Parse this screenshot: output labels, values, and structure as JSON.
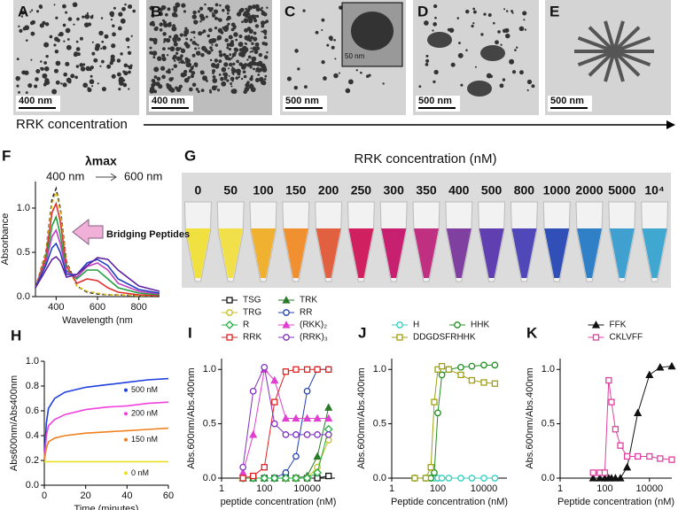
{
  "images": [
    {
      "label": "A",
      "scale": "400 nm"
    },
    {
      "label": "B",
      "scale": "400 nm"
    },
    {
      "label": "C",
      "scale": "500 nm",
      "inset_scale": "50 nm"
    },
    {
      "label": "D",
      "scale": "500 nm"
    },
    {
      "label": "E",
      "scale": "500 nm"
    }
  ],
  "arrow_label": "RRK concentration",
  "photo": {
    "label": "G",
    "title": "RRK concentration (nM)",
    "tubes": [
      "0",
      "50",
      "100",
      "150",
      "200",
      "250",
      "300",
      "350",
      "400",
      "500",
      "800",
      "1000",
      "2000",
      "5000",
      "10⁴"
    ],
    "colors": [
      "#f0e040",
      "#f2e04a",
      "#f0b030",
      "#f09030",
      "#e06040",
      "#d02060",
      "#c82070",
      "#c03080",
      "#8040a0",
      "#6040b0",
      "#5048b8",
      "#3050b8",
      "#3080c8",
      "#40a0d0",
      "#40a8d0"
    ]
  },
  "chart_data": [
    {
      "type": "line",
      "label": "F",
      "xlabel": "Wavelength (nm",
      "ylabel": "Absorbance",
      "annotations": [
        "λmax",
        "400 nm",
        "600 nm",
        "Bridging Peptides"
      ],
      "x": [
        300,
        350,
        380,
        400,
        420,
        450,
        500,
        550,
        600,
        650,
        700,
        800,
        900
      ],
      "xlim": [
        300,
        900
      ],
      "xticks": [
        400,
        600,
        800
      ],
      "ylim": [
        0,
        1.3
      ],
      "yticks": [
        {
          "value": 0,
          "label": "0.0"
        },
        0.5,
        {
          "value": 1,
          "label": "1.0"
        }
      ],
      "series": [
        {
          "color": "#222222",
          "dashed": true,
          "values": [
            0.1,
            0.5,
            1.1,
            1.22,
            1.0,
            0.4,
            0.12,
            0.05,
            0.03,
            0.02,
            0.02,
            0.01,
            0.01
          ]
        },
        {
          "color": "#e0c020",
          "dashed": true,
          "values": [
            0.1,
            0.48,
            1.05,
            1.18,
            0.96,
            0.38,
            0.12,
            0.06,
            0.04,
            0.02,
            0.02,
            0.01,
            0.01
          ]
        },
        {
          "color": "#e03030",
          "values": [
            0.1,
            0.45,
            0.95,
            1.05,
            0.85,
            0.35,
            0.15,
            0.2,
            0.18,
            0.1,
            0.05,
            0.02,
            0.01
          ]
        },
        {
          "color": "#20a040",
          "values": [
            0.1,
            0.4,
            0.8,
            0.9,
            0.7,
            0.3,
            0.2,
            0.3,
            0.3,
            0.2,
            0.1,
            0.04,
            0.02
          ]
        },
        {
          "color": "#c040c0",
          "values": [
            0.1,
            0.38,
            0.68,
            0.75,
            0.6,
            0.28,
            0.22,
            0.34,
            0.38,
            0.3,
            0.15,
            0.06,
            0.03
          ]
        },
        {
          "color": "#2040c0",
          "values": [
            0.1,
            0.35,
            0.55,
            0.6,
            0.5,
            0.25,
            0.25,
            0.38,
            0.42,
            0.35,
            0.2,
            0.08,
            0.04
          ]
        },
        {
          "color": "#6020a0",
          "values": [
            0.1,
            0.3,
            0.42,
            0.45,
            0.4,
            0.22,
            0.25,
            0.35,
            0.44,
            0.42,
            0.3,
            0.12,
            0.06
          ]
        }
      ]
    },
    {
      "type": "line",
      "label": "H",
      "xlabel": "Time (minutes)",
      "ylabel": "Abs600nm/Abs400nm",
      "legend": "right",
      "x": [
        0,
        1,
        2,
        5,
        10,
        20,
        30,
        40,
        50,
        60
      ],
      "xlim": [
        0,
        60
      ],
      "xticks": [
        0,
        20,
        40,
        60
      ],
      "ylim": [
        0,
        1.0
      ],
      "yticks": [
        {
          "value": 0,
          "label": "0.0"
        },
        0.2,
        0.4,
        0.6,
        0.8,
        {
          "value": 1,
          "label": "1.0"
        }
      ],
      "series": [
        {
          "name": "500 nM",
          "color": "#2040e0",
          "values": [
            0.2,
            0.5,
            0.62,
            0.7,
            0.75,
            0.79,
            0.81,
            0.83,
            0.85,
            0.86
          ]
        },
        {
          "name": "200 nM",
          "color": "#f040e0",
          "values": [
            0.2,
            0.4,
            0.48,
            0.53,
            0.57,
            0.61,
            0.63,
            0.64,
            0.66,
            0.67
          ]
        },
        {
          "name": "150 nM",
          "color": "#f08020",
          "values": [
            0.2,
            0.3,
            0.35,
            0.38,
            0.4,
            0.42,
            0.43,
            0.44,
            0.45,
            0.46
          ]
        },
        {
          "name": "0 nM",
          "color": "#e8e020",
          "values": [
            0.19,
            0.19,
            0.19,
            0.19,
            0.19,
            0.19,
            0.19,
            0.19,
            0.19,
            0.19
          ]
        }
      ]
    },
    {
      "type": "line",
      "label": "I",
      "xlabel": "peptide concentration (nM)",
      "ylabel": "Abs.600nm/Abs.400nm",
      "legend": "top",
      "xscale": "log",
      "x": [
        10,
        30,
        100,
        300,
        1000,
        3000,
        10000,
        30000,
        100000
      ],
      "xlim": [
        1,
        200000
      ],
      "xticks": [
        1,
        100,
        10000
      ],
      "ylim": [
        0,
        1.1
      ],
      "yticks": [
        {
          "value": 0,
          "label": "0.0"
        },
        0.5,
        {
          "value": 1,
          "label": "1.0"
        }
      ],
      "series": [
        {
          "name": "TSG",
          "color": "#111111",
          "marker": "square",
          "values": [
            0,
            0,
            0,
            0,
            0,
            0,
            0,
            0,
            0.02
          ]
        },
        {
          "name": "TRK",
          "color": "#2a7a2a",
          "marker": "triangle",
          "values": [
            0,
            0,
            0,
            0,
            0,
            0,
            0.02,
            0.2,
            0.65
          ]
        },
        {
          "name": "TRG",
          "color": "#c8c020",
          "marker": "circle",
          "values": [
            0,
            0,
            0,
            0,
            0,
            0,
            0,
            0.1,
            0.35
          ]
        },
        {
          "name": "RR",
          "color": "#2040b0",
          "marker": "circle",
          "values": [
            0,
            0,
            0,
            0,
            0.05,
            0.2,
            0.8,
            1.0,
            1.0
          ]
        },
        {
          "name": "R",
          "color": "#20b040",
          "marker": "diamond",
          "values": [
            0,
            0,
            0,
            0,
            0,
            0,
            0,
            0.05,
            0.45
          ]
        },
        {
          "name": "(RKK)₂",
          "color": "#e040d0",
          "marker": "triangle",
          "values": [
            0.05,
            0.4,
            1.0,
            0.9,
            0.55,
            0.55,
            0.55,
            0.55,
            0.55
          ]
        },
        {
          "name": "RRK",
          "color": "#e02020",
          "marker": "square",
          "values": [
            0,
            0.02,
            0.1,
            0.7,
            0.98,
            1.0,
            1.0,
            1.0,
            1.0
          ]
        },
        {
          "name": "(RRK)₃",
          "color": "#8030c0",
          "marker": "circle",
          "values": [
            0.1,
            0.8,
            1.02,
            0.5,
            0.4,
            0.4,
            0.4,
            0.4,
            0.4
          ]
        }
      ]
    },
    {
      "type": "line",
      "label": "J",
      "xlabel": "Peptide concentration (nM)",
      "ylabel": "Abs.600nm/Abs.400nm",
      "legend": "top",
      "xscale": "log",
      "x": [
        10,
        30,
        50,
        70,
        100,
        150,
        300,
        1000,
        3000,
        10000,
        30000
      ],
      "xlim": [
        1,
        100000
      ],
      "xticks": [
        1,
        100,
        10000
      ],
      "ylim": [
        0,
        1.1
      ],
      "yticks": [
        {
          "value": 0,
          "label": "0.0"
        },
        0.5,
        {
          "value": 1,
          "label": "1.0"
        }
      ],
      "series": [
        {
          "name": "H",
          "color": "#30d0c0",
          "marker": "circle",
          "values": [
            0,
            0,
            0,
            0,
            0,
            0,
            0,
            0,
            0,
            0,
            0
          ]
        },
        {
          "name": "HHK",
          "color": "#209020",
          "marker": "circle",
          "values": [
            0,
            0,
            0,
            0.05,
            0.6,
            0.95,
            1.0,
            1.02,
            1.03,
            1.04,
            1.04
          ]
        },
        {
          "name": "DDGDSFRHHK",
          "color": "#a0a010",
          "marker": "square",
          "values": [
            0,
            0,
            0.1,
            0.7,
            1.0,
            1.03,
            1.0,
            0.95,
            0.9,
            0.88,
            0.87
          ]
        }
      ]
    },
    {
      "type": "line",
      "label": "K",
      "xlabel": "Peptide concentration (nM)",
      "ylabel": "Abs.600nm/Abs.400nm",
      "legend": "top",
      "xscale": "log",
      "x": [
        30,
        60,
        100,
        150,
        200,
        300,
        500,
        1000,
        3000,
        10000,
        30000,
        100000
      ],
      "xlim": [
        1,
        100000
      ],
      "xticks": [
        1,
        100,
        10000
      ],
      "ylim": [
        0,
        1.1
      ],
      "yticks": [
        {
          "value": 0,
          "label": "0.0"
        },
        0.5,
        {
          "value": 1,
          "label": "1.0"
        }
      ],
      "series": [
        {
          "name": "FFK",
          "color": "#111111",
          "marker": "triangle",
          "values": [
            0,
            0,
            0,
            0,
            0,
            0,
            0,
            0.1,
            0.6,
            0.95,
            1.02,
            1.03
          ]
        },
        {
          "name": "CKLVFF",
          "color": "#e040a0",
          "marker": "square",
          "values": [
            0.05,
            0.05,
            0.05,
            0.9,
            0.7,
            0.45,
            0.3,
            0.2,
            0.2,
            0.2,
            0.18,
            0.17
          ]
        }
      ]
    }
  ]
}
